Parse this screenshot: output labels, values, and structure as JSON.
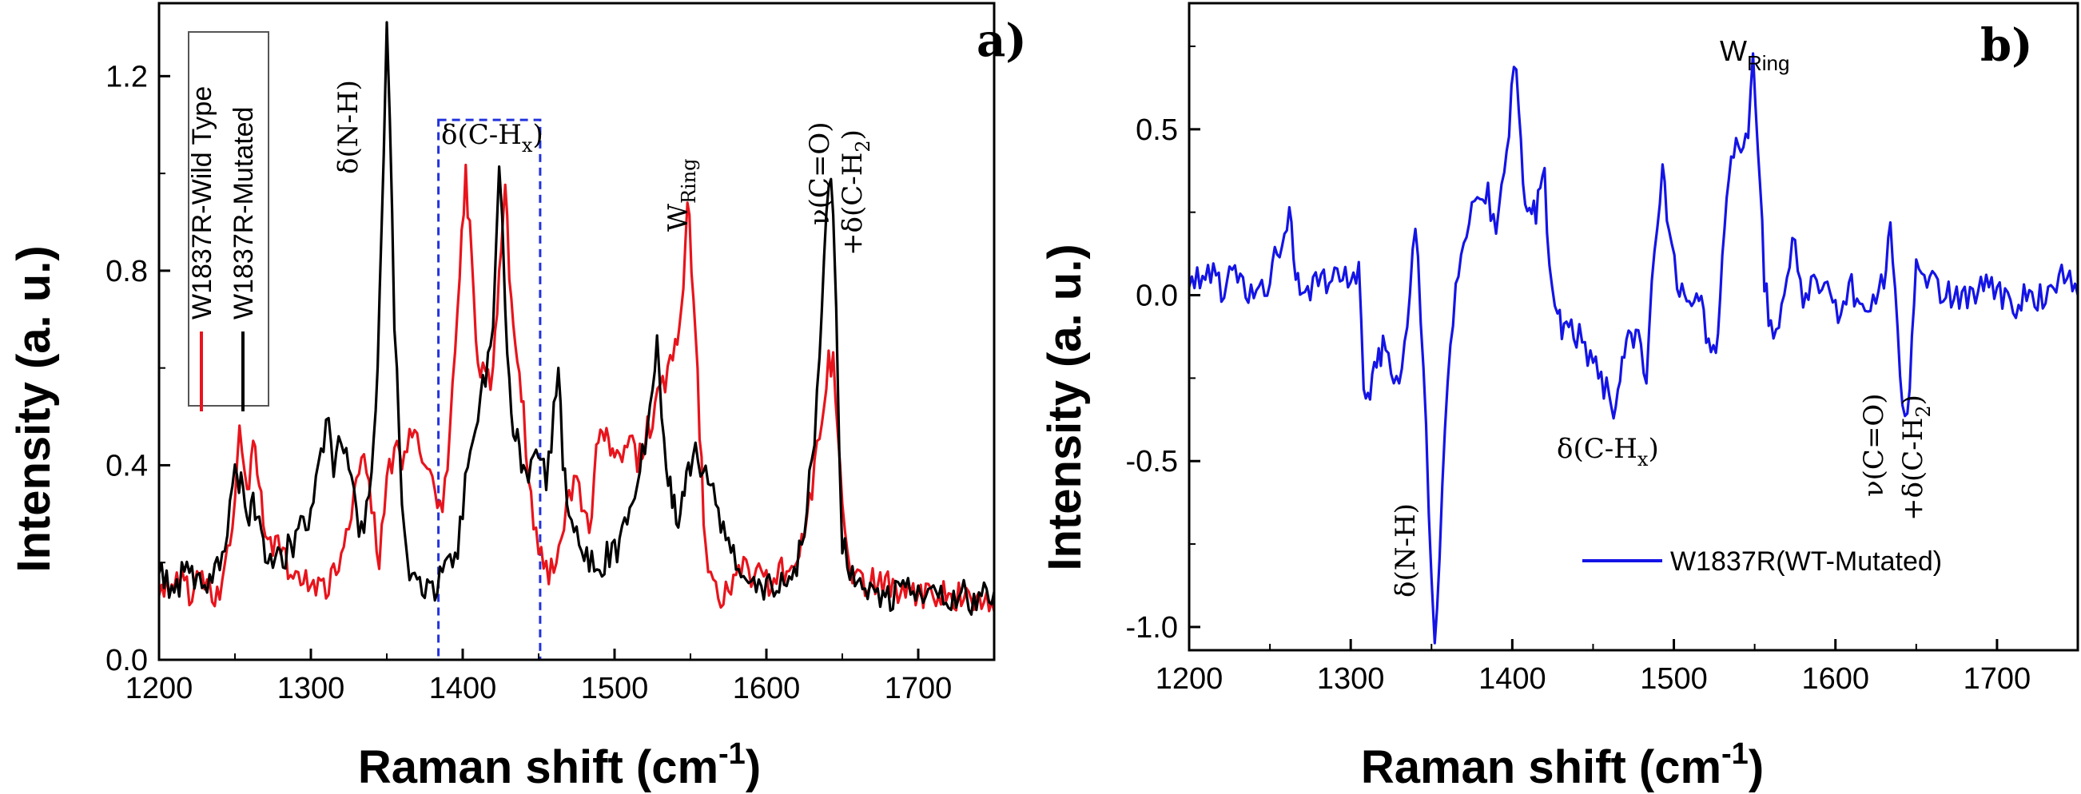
{
  "chart_data": [
    {
      "id": "a",
      "type": "line",
      "panel_label": "a)",
      "xlabel_main": "Raman shift (cm",
      "xlabel_sup": "-1",
      "xlabel_close": ")",
      "ylabel": "Intensity (a. u.)",
      "xlim": [
        1200,
        1750
      ],
      "ylim": [
        0,
        1.35
      ],
      "x_ticks": [
        1200,
        1300,
        1400,
        1500,
        1600,
        1700
      ],
      "x_tick_labels": [
        "1200",
        "1300",
        "1400",
        "1500",
        "1600",
        "1700"
      ],
      "y_ticks": [
        0,
        0.4,
        0.8,
        1.2
      ],
      "y_tick_labels": [
        "0.0",
        "0.4",
        "0.8",
        "1.2"
      ],
      "legend": {
        "position": "top-left",
        "entries": [
          "W1837R-Wild Type",
          "W1837R-Mutated"
        ]
      },
      "highlight_region": {
        "x": [
          1384,
          1451
        ],
        "y": [
          0,
          1.11
        ]
      },
      "series": [
        {
          "name": "W1837R-Wild Type",
          "color": "#e8141c",
          "x": [
            1200,
            1210,
            1220,
            1230,
            1240,
            1245,
            1250,
            1253,
            1258,
            1262,
            1266,
            1270,
            1280,
            1290,
            1300,
            1310,
            1320,
            1325,
            1330,
            1335,
            1340,
            1345,
            1350,
            1355,
            1360,
            1365,
            1370,
            1375,
            1380,
            1385,
            1390,
            1395,
            1398,
            1402,
            1406,
            1410,
            1415,
            1420,
            1424,
            1428,
            1432,
            1436,
            1440,
            1445,
            1450,
            1455,
            1460,
            1465,
            1470,
            1475,
            1480,
            1485,
            1488,
            1492,
            1496,
            1500,
            1505,
            1510,
            1515,
            1520,
            1525,
            1530,
            1535,
            1540,
            1544,
            1548,
            1552,
            1556,
            1560,
            1565,
            1570,
            1575,
            1580,
            1590,
            1600,
            1610,
            1620,
            1625,
            1630,
            1635,
            1638,
            1641,
            1644,
            1647,
            1650,
            1655,
            1660,
            1670,
            1680,
            1690,
            1700,
            1710,
            1720,
            1730,
            1740,
            1750
          ],
          "y": [
            0.15,
            0.17,
            0.14,
            0.16,
            0.13,
            0.22,
            0.34,
            0.45,
            0.33,
            0.44,
            0.36,
            0.25,
            0.22,
            0.18,
            0.16,
            0.15,
            0.2,
            0.28,
            0.35,
            0.42,
            0.33,
            0.2,
            0.38,
            0.43,
            0.4,
            0.45,
            0.44,
            0.4,
            0.35,
            0.3,
            0.4,
            0.62,
            0.8,
            1.0,
            0.82,
            0.62,
            0.56,
            0.58,
            0.8,
            0.98,
            0.72,
            0.6,
            0.5,
            0.34,
            0.22,
            0.19,
            0.18,
            0.24,
            0.32,
            0.4,
            0.3,
            0.28,
            0.42,
            0.5,
            0.45,
            0.42,
            0.4,
            0.44,
            0.42,
            0.46,
            0.5,
            0.55,
            0.6,
            0.66,
            0.72,
            0.95,
            0.75,
            0.48,
            0.22,
            0.15,
            0.14,
            0.13,
            0.2,
            0.18,
            0.16,
            0.18,
            0.22,
            0.28,
            0.35,
            0.46,
            0.55,
            0.62,
            0.6,
            0.48,
            0.35,
            0.2,
            0.17,
            0.16,
            0.15,
            0.14,
            0.12,
            0.13,
            0.14,
            0.12,
            0.11,
            0.1
          ]
        },
        {
          "name": "W1837R-Mutated",
          "color": "#000000",
          "x": [
            1200,
            1210,
            1220,
            1230,
            1240,
            1245,
            1250,
            1254,
            1258,
            1262,
            1266,
            1270,
            1280,
            1290,
            1300,
            1305,
            1310,
            1315,
            1320,
            1325,
            1330,
            1335,
            1340,
            1344,
            1348,
            1350,
            1352,
            1355,
            1360,
            1365,
            1370,
            1380,
            1390,
            1395,
            1400,
            1405,
            1410,
            1415,
            1420,
            1422,
            1424,
            1426,
            1428,
            1432,
            1436,
            1440,
            1445,
            1450,
            1455,
            1460,
            1463,
            1466,
            1470,
            1480,
            1490,
            1500,
            1505,
            1510,
            1515,
            1520,
            1525,
            1528,
            1531,
            1534,
            1538,
            1542,
            1546,
            1550,
            1555,
            1560,
            1570,
            1580,
            1590,
            1600,
            1610,
            1620,
            1625,
            1630,
            1635,
            1638,
            1641,
            1644,
            1646,
            1648,
            1650,
            1655,
            1660,
            1670,
            1680,
            1690,
            1700,
            1710,
            1720,
            1730,
            1740,
            1750
          ],
          "y": [
            0.17,
            0.15,
            0.19,
            0.16,
            0.2,
            0.28,
            0.38,
            0.36,
            0.3,
            0.33,
            0.28,
            0.22,
            0.2,
            0.25,
            0.3,
            0.38,
            0.5,
            0.4,
            0.45,
            0.38,
            0.3,
            0.25,
            0.38,
            0.6,
            1.05,
            1.31,
            1.1,
            0.7,
            0.3,
            0.18,
            0.16,
            0.15,
            0.18,
            0.2,
            0.3,
            0.45,
            0.52,
            0.58,
            0.7,
            0.88,
            1.0,
            0.9,
            0.7,
            0.5,
            0.45,
            0.4,
            0.38,
            0.42,
            0.36,
            0.5,
            0.58,
            0.42,
            0.3,
            0.22,
            0.2,
            0.22,
            0.25,
            0.3,
            0.35,
            0.45,
            0.55,
            0.65,
            0.5,
            0.4,
            0.32,
            0.3,
            0.35,
            0.4,
            0.42,
            0.38,
            0.28,
            0.2,
            0.15,
            0.14,
            0.16,
            0.2,
            0.28,
            0.4,
            0.62,
            0.82,
            0.98,
            0.94,
            0.7,
            0.45,
            0.25,
            0.18,
            0.16,
            0.14,
            0.13,
            0.15,
            0.13,
            0.14,
            0.12,
            0.13,
            0.12,
            0.14
          ]
        }
      ],
      "annotations": [
        {
          "id": "nh",
          "text_main": "δ(N-H)",
          "sub": ""
        },
        {
          "id": "chx",
          "text_main": "δ(C-H",
          "sub": "x",
          "close": ")"
        },
        {
          "id": "wring",
          "text_main": "W",
          "sub": "Ring"
        },
        {
          "id": "co1",
          "text_main": "ν(C=O)",
          "sub": ""
        },
        {
          "id": "co2",
          "text_main": "+δ(C-H",
          "sub": "2",
          "close": ")"
        }
      ]
    },
    {
      "id": "b",
      "type": "line",
      "panel_label": "b)",
      "xlabel_main": "Raman shift (cm",
      "xlabel_sup": "-1",
      "xlabel_close": ")",
      "ylabel": "Intensity (a. u.)",
      "xlim": [
        1200,
        1750
      ],
      "ylim": [
        -1.07,
        0.88
      ],
      "x_ticks": [
        1200,
        1300,
        1400,
        1500,
        1600,
        1700
      ],
      "x_tick_labels": [
        "1200",
        "1300",
        "1400",
        "1500",
        "1600",
        "1700"
      ],
      "y_ticks": [
        -1.0,
        -0.5,
        0.0,
        0.5
      ],
      "y_tick_labels": [
        "-1.0",
        "-0.5",
        "0.0",
        "0.5"
      ],
      "legend": {
        "position": "bottom-right",
        "entries": [
          "W1837R(WT-Mutated)"
        ]
      },
      "series": [
        {
          "name": "W1837R(WT-Mutated)",
          "color": "#1414e6",
          "x": [
            1200,
            1210,
            1220,
            1230,
            1240,
            1250,
            1256,
            1262,
            1266,
            1270,
            1280,
            1290,
            1300,
            1305,
            1308,
            1312,
            1316,
            1320,
            1325,
            1330,
            1335,
            1340,
            1345,
            1350,
            1352,
            1355,
            1360,
            1365,
            1370,
            1375,
            1380,
            1385,
            1390,
            1395,
            1398,
            1401,
            1404,
            1408,
            1412,
            1416,
            1420,
            1423,
            1428,
            1432,
            1438,
            1445,
            1450,
            1455,
            1460,
            1464,
            1468,
            1472,
            1478,
            1483,
            1488,
            1493,
            1497,
            1502,
            1508,
            1514,
            1520,
            1526,
            1530,
            1534,
            1540,
            1546,
            1549,
            1552,
            1556,
            1560,
            1565,
            1570,
            1575,
            1580,
            1590,
            1600,
            1610,
            1620,
            1630,
            1634,
            1637,
            1640,
            1643,
            1646,
            1650,
            1655,
            1660,
            1670,
            1680,
            1690,
            1700,
            1710,
            1720,
            1730,
            1740,
            1750
          ],
          "y": [
            0.05,
            0.08,
            0.02,
            0.06,
            0.0,
            0.05,
            0.15,
            0.25,
            0.05,
            0.0,
            0.03,
            0.08,
            0.05,
            0.08,
            -0.25,
            -0.3,
            -0.2,
            -0.15,
            -0.22,
            -0.3,
            -0.1,
            0.24,
            -0.2,
            -0.85,
            -1.05,
            -0.8,
            -0.25,
            0.0,
            0.12,
            0.28,
            0.25,
            0.3,
            0.2,
            0.35,
            0.5,
            0.72,
            0.55,
            0.3,
            0.22,
            0.28,
            0.35,
            0.1,
            -0.05,
            -0.12,
            -0.1,
            -0.15,
            -0.2,
            -0.25,
            -0.3,
            -0.38,
            -0.2,
            -0.1,
            -0.15,
            -0.22,
            0.1,
            0.35,
            0.2,
            0.05,
            0.0,
            0.02,
            -0.1,
            -0.18,
            0.1,
            0.35,
            0.45,
            0.5,
            0.68,
            0.45,
            0.05,
            -0.1,
            -0.12,
            0.1,
            0.15,
            0.0,
            0.05,
            -0.05,
            0.02,
            -0.02,
            0.05,
            0.22,
            0.05,
            -0.22,
            -0.38,
            -0.25,
            0.15,
            0.08,
            0.05,
            0.0,
            -0.02,
            0.03,
            0.0,
            -0.05,
            0.02,
            -0.03,
            0.05,
            0.0
          ]
        }
      ],
      "annotations": [
        {
          "id": "nh",
          "text_main": "δ(N-H)",
          "sub": ""
        },
        {
          "id": "chx",
          "text_main": "δ(C-H",
          "sub": "x",
          "close": ")"
        },
        {
          "id": "wring",
          "text_main": "W",
          "sub": "Ring"
        },
        {
          "id": "co1",
          "text_main": "ν(C=O)",
          "sub": ""
        },
        {
          "id": "co2",
          "text_main": "+δ(C-H",
          "sub": "2",
          "close": ")"
        }
      ]
    }
  ]
}
